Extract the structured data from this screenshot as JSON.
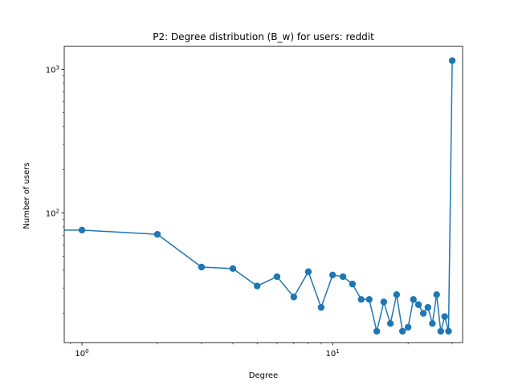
{
  "chart_data": {
    "type": "line",
    "title": "P2: Degree distribution (B_w) for users: reddit",
    "xlabel": "Degree",
    "ylabel": "Number of users",
    "xscale": "log",
    "yscale": "log",
    "xlim": [
      0.85,
      33
    ],
    "ylim": [
      12.5,
      1450
    ],
    "grid": false,
    "legend": "none",
    "x_ticks": [
      {
        "value": 1,
        "base": "10",
        "exp": "0"
      },
      {
        "value": 10,
        "base": "10",
        "exp": "1"
      }
    ],
    "y_ticks": [
      {
        "value": 100,
        "base": "10",
        "exp": "2"
      },
      {
        "value": 1000,
        "base": "10",
        "exp": "3"
      }
    ],
    "series": [
      {
        "color": "#1f77b4",
        "line_start": {
          "x": 0,
          "y": 76
        },
        "x": [
          1,
          2,
          3,
          4,
          5,
          6,
          7,
          8,
          9,
          10,
          11,
          12,
          13,
          14,
          15,
          16,
          17,
          18,
          19,
          20,
          21,
          22,
          23,
          24,
          25,
          26,
          27,
          28,
          29,
          30
        ],
        "y": [
          76,
          71,
          42,
          41,
          31,
          36,
          26,
          39,
          22,
          37,
          36,
          32,
          25,
          25,
          15,
          24,
          17,
          27,
          15,
          16,
          25,
          23,
          20,
          22,
          17,
          27,
          15,
          19,
          15,
          1150
        ]
      }
    ]
  }
}
